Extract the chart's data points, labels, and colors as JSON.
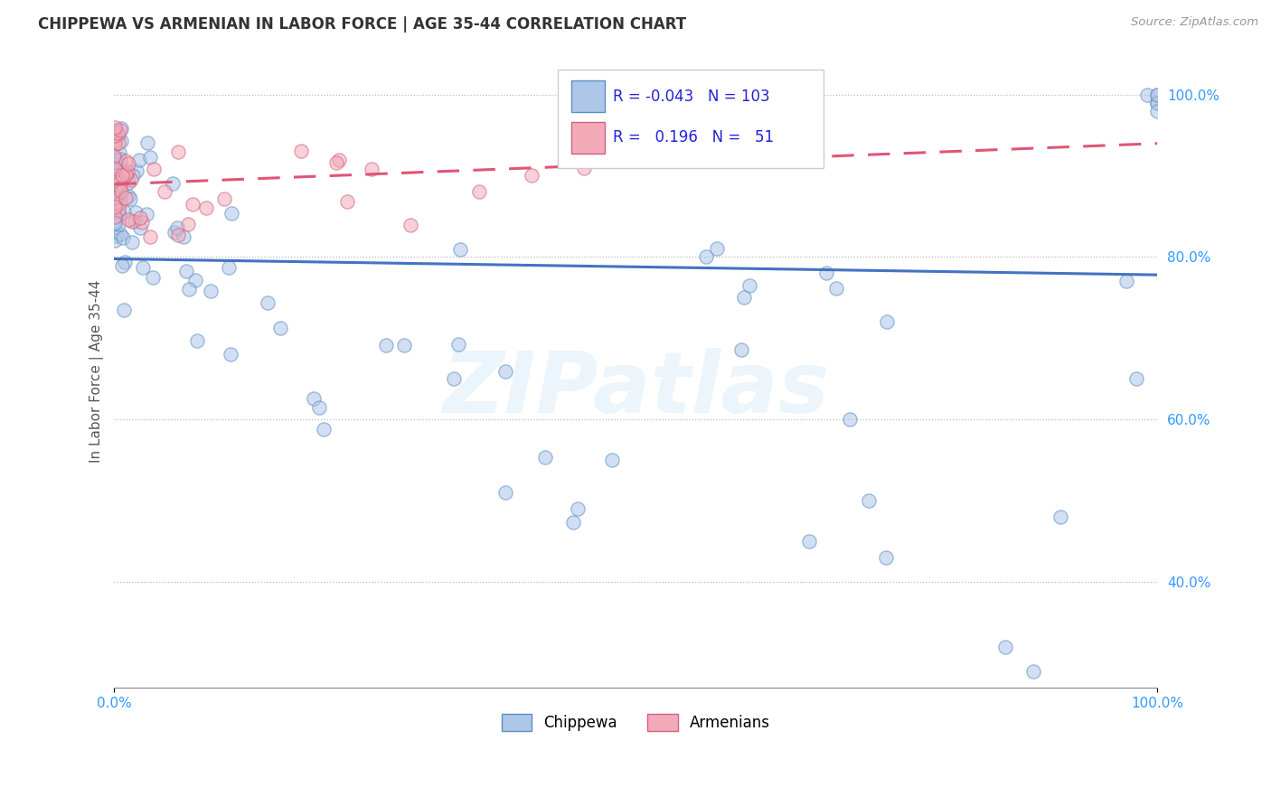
{
  "title": "CHIPPEWA VS ARMENIAN IN LABOR FORCE | AGE 35-44 CORRELATION CHART",
  "source": "Source: ZipAtlas.com",
  "ylabel": "In Labor Force | Age 35-44",
  "xlim": [
    0.0,
    1.0
  ],
  "ylim": [
    0.27,
    1.05
  ],
  "yticks": [
    0.4,
    0.6,
    0.8,
    1.0
  ],
  "ytick_labels": [
    "40.0%",
    "60.0%",
    "80.0%",
    "100.0%"
  ],
  "xticks": [
    0.0,
    1.0
  ],
  "xtick_labels": [
    "0.0%",
    "100.0%"
  ],
  "legend_r_chippewa": "-0.043",
  "legend_n_chippewa": "103",
  "legend_r_armenian": "0.196",
  "legend_n_armenian": "51",
  "chippewa_fill": "#aec6e8",
  "chippewa_edge": "#5b8ec4",
  "armenian_fill": "#f2aab8",
  "armenian_edge": "#d46080",
  "chippewa_line_color": "#4472c4",
  "armenian_line_color": "#e05575",
  "background_color": "#ffffff",
  "grid_color": "#bbbbbb",
  "watermark": "ZIPatlas",
  "title_fontsize": 12,
  "axis_label_fontsize": 11,
  "tick_fontsize": 11,
  "scatter_size": 120,
  "scatter_alpha": 0.55,
  "scatter_linewidth": 1.0
}
